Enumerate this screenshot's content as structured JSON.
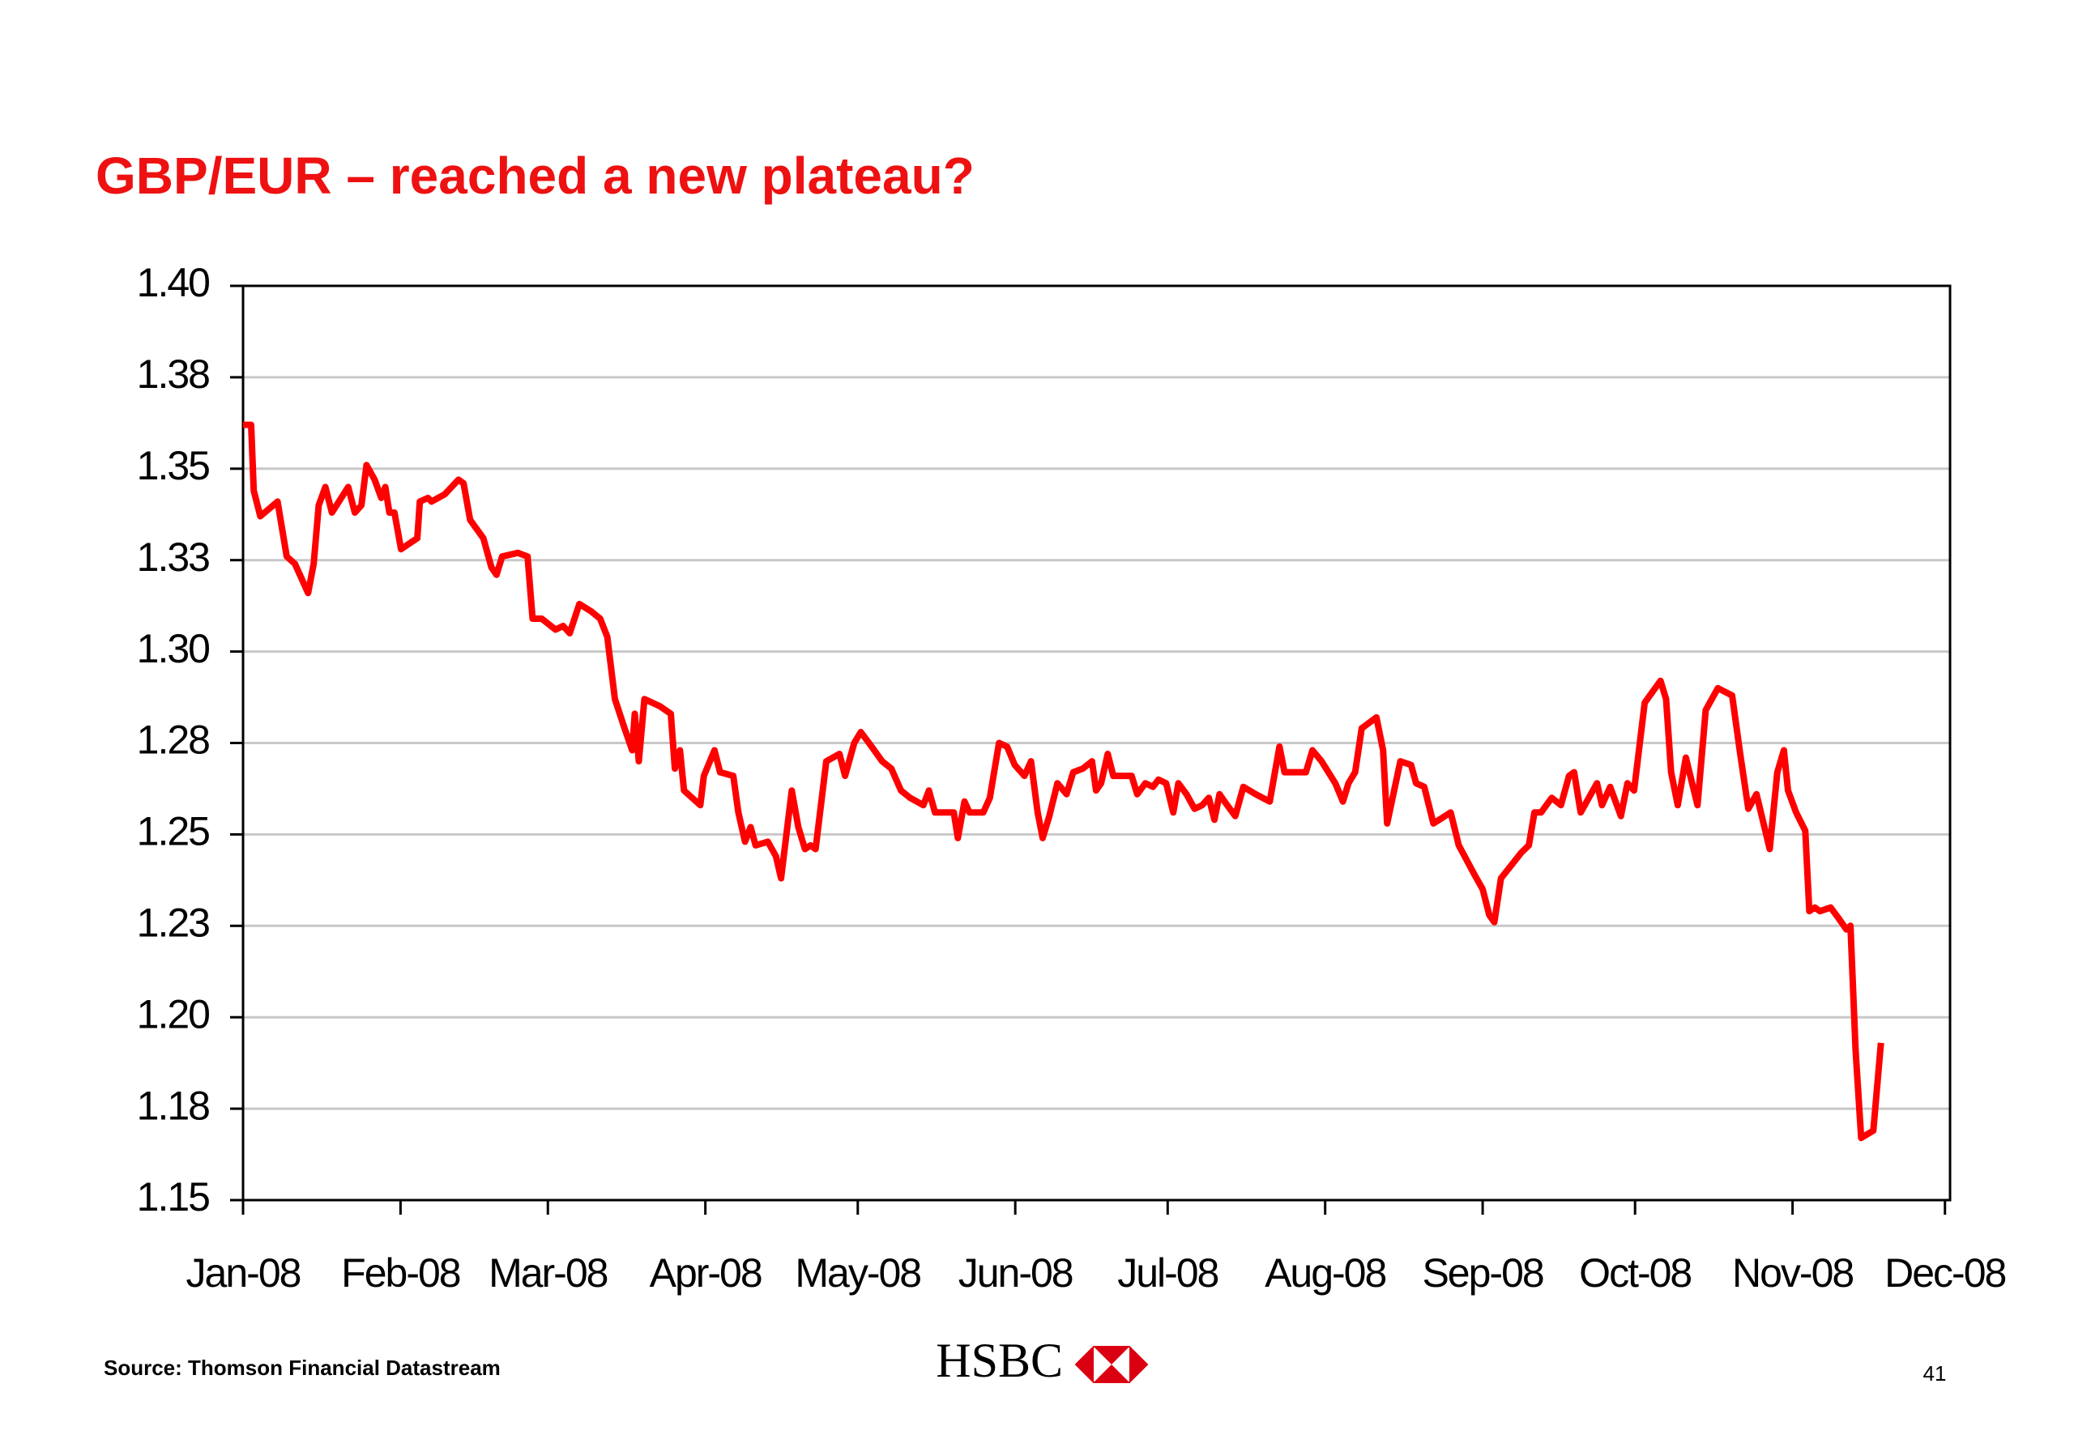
{
  "chart_data": {
    "type": "line",
    "title": "GBP/EUR – reached a new plateau?",
    "color": "#ff0000",
    "grid": true,
    "ylim": [
      1.15,
      1.4
    ],
    "yticks": [
      1.15,
      {
        "value": 1.175,
        "label": "1.18"
      },
      {
        "value": 1.2,
        "label": "1.20"
      },
      {
        "value": 1.225,
        "label": "1.23"
      },
      1.25,
      {
        "value": 1.275,
        "label": "1.28"
      },
      {
        "value": 1.3,
        "label": "1.30"
      },
      {
        "value": 1.325,
        "label": "1.33"
      },
      1.35,
      {
        "value": 1.375,
        "label": "1.38"
      },
      {
        "value": 1.4,
        "label": "1.40"
      }
    ],
    "xlim": [
      0,
      336
    ],
    "xticks": [
      {
        "value": 0,
        "label": "Jan-08"
      },
      {
        "value": 31,
        "label": "Feb-08"
      },
      {
        "value": 60,
        "label": "Mar-08"
      },
      {
        "value": 91,
        "label": "Apr-08"
      },
      {
        "value": 121,
        "label": "May-08"
      },
      {
        "value": 152,
        "label": "Jun-08"
      },
      {
        "value": 182,
        "label": "Jul-08"
      },
      {
        "value": 213,
        "label": "Aug-08"
      },
      {
        "value": 244,
        "label": "Sep-08"
      },
      {
        "value": 274,
        "label": "Oct-08"
      },
      {
        "value": 305,
        "label": "Nov-08"
      },
      {
        "value": 335,
        "label": "Dec-08"
      }
    ],
    "x": [
      0,
      1.6,
      2.1,
      3.4,
      6.8,
      8.6,
      10.2,
      12.8,
      13.9,
      14.9,
      16.2,
      17.5,
      20.7,
      22.0,
      23.3,
      24.3,
      25.9,
      27.2,
      28.0,
      28.8,
      29.8,
      31.1,
      34.3,
      34.8,
      36.4,
      37.1,
      39.7,
      42.4,
      43.4,
      44.7,
      47.3,
      48.9,
      49.9,
      51.0,
      54.1,
      56.0,
      57.0,
      58.8,
      61.5,
      63.0,
      64.3,
      66.2,
      68.5,
      70.3,
      71.7,
      73.2,
      75.1,
      76.6,
      77.1,
      77.9,
      79.0,
      82.1,
      84.2,
      85.0,
      86.0,
      86.8,
      88.4,
      90.0,
      90.7,
      92.8,
      93.9,
      96.5,
      97.5,
      98.8,
      99.9,
      100.9,
      103.3,
      104.9,
      105.9,
      108.0,
      109.3,
      110.6,
      111.7,
      112.7,
      114.8,
      117.4,
      118.5,
      120.3,
      121.6,
      123.2,
      125.8,
      127.6,
      129.5,
      131.3,
      133.9,
      135.0,
      136.2,
      139.9,
      140.7,
      142.0,
      143.0,
      145.7,
      147.0,
      148.8,
      150.4,
      151.9,
      153.8,
      155.1,
      156.4,
      157.4,
      158.7,
      160.3,
      162.1,
      163.4,
      165.3,
      167.1,
      167.9,
      168.9,
      170.2,
      171.3,
      174.9,
      176.0,
      177.6,
      179.1,
      180.2,
      181.7,
      183.1,
      184.1,
      185.7,
      187.3,
      188.8,
      190.1,
      191.2,
      192.2,
      193.2,
      195.3,
      196.9,
      199.3,
      202.1,
      204.0,
      205.0,
      207.1,
      209.2,
      210.5,
      212.3,
      215.0,
      216.5,
      217.6,
      218.9,
      220.2,
      223.1,
      224.4,
      225.2,
      227.8,
      229.9,
      230.9,
      232.5,
      234.3,
      237.7,
      239.3,
      242.4,
      244.0,
      245.3,
      246.3,
      247.6,
      251.6,
      253.1,
      254.2,
      255.5,
      257.6,
      259.4,
      261.0,
      262.0,
      263.3,
      266.5,
      267.5,
      269.1,
      271.2,
      272.5,
      273.8,
      275.9,
      279.0,
      280.1,
      281.1,
      282.4,
      284.0,
      286.3,
      287.9,
      290.3,
      293.1,
      294.7,
      296.3,
      297.9,
      300.5,
      302.0,
      303.3,
      304.1,
      305.7,
      307.5,
      308.3,
      309.4,
      310.4,
      312.5,
      314.1,
      315.6,
      316.4,
      317.4,
      318.5,
      320.9,
      322.4
    ],
    "values": [
      1.362,
      1.362,
      1.344,
      1.337,
      1.341,
      1.326,
      1.324,
      1.316,
      1.324,
      1.34,
      1.345,
      1.338,
      1.345,
      1.338,
      1.34,
      1.351,
      1.347,
      1.342,
      1.345,
      1.338,
      1.338,
      1.328,
      1.331,
      1.341,
      1.342,
      1.341,
      1.343,
      1.347,
      1.346,
      1.336,
      1.331,
      1.323,
      1.321,
      1.326,
      1.327,
      1.326,
      1.309,
      1.309,
      1.306,
      1.307,
      1.305,
      1.313,
      1.311,
      1.309,
      1.304,
      1.287,
      1.279,
      1.273,
      1.283,
      1.27,
      1.287,
      1.285,
      1.283,
      1.268,
      1.273,
      1.262,
      1.26,
      1.258,
      1.266,
      1.273,
      1.267,
      1.266,
      1.256,
      1.248,
      1.252,
      1.247,
      1.248,
      1.244,
      1.238,
      1.262,
      1.252,
      1.246,
      1.247,
      1.246,
      1.27,
      1.272,
      1.266,
      1.275,
      1.278,
      1.275,
      1.27,
      1.268,
      1.262,
      1.26,
      1.258,
      1.262,
      1.256,
      1.256,
      1.249,
      1.259,
      1.256,
      1.256,
      1.26,
      1.275,
      1.274,
      1.269,
      1.266,
      1.27,
      1.256,
      1.249,
      1.255,
      1.264,
      1.261,
      1.267,
      1.268,
      1.27,
      1.262,
      1.264,
      1.272,
      1.266,
      1.266,
      1.261,
      1.264,
      1.263,
      1.265,
      1.264,
      1.256,
      1.264,
      1.261,
      1.257,
      1.258,
      1.26,
      1.254,
      1.261,
      1.259,
      1.255,
      1.263,
      1.261,
      1.259,
      1.274,
      1.267,
      1.267,
      1.267,
      1.273,
      1.27,
      1.264,
      1.259,
      1.264,
      1.267,
      1.279,
      1.282,
      1.273,
      1.253,
      1.27,
      1.269,
      1.264,
      1.263,
      1.253,
      1.256,
      1.247,
      1.239,
      1.235,
      1.228,
      1.226,
      1.238,
      1.245,
      1.247,
      1.256,
      1.256,
      1.26,
      1.258,
      1.266,
      1.267,
      1.256,
      1.264,
      1.258,
      1.263,
      1.255,
      1.264,
      1.262,
      1.286,
      1.292,
      1.287,
      1.267,
      1.258,
      1.271,
      1.258,
      1.284,
      1.29,
      1.288,
      1.272,
      1.257,
      1.261,
      1.246,
      1.267,
      1.273,
      1.262,
      1.256,
      1.251,
      1.229,
      1.23,
      1.229,
      1.23,
      1.227,
      1.224,
      1.225,
      1.191,
      1.167,
      1.169,
      1.193
    ]
  },
  "source": "Source: Thomson Financial Datastream",
  "logo": "HSBC",
  "page_number": "41"
}
